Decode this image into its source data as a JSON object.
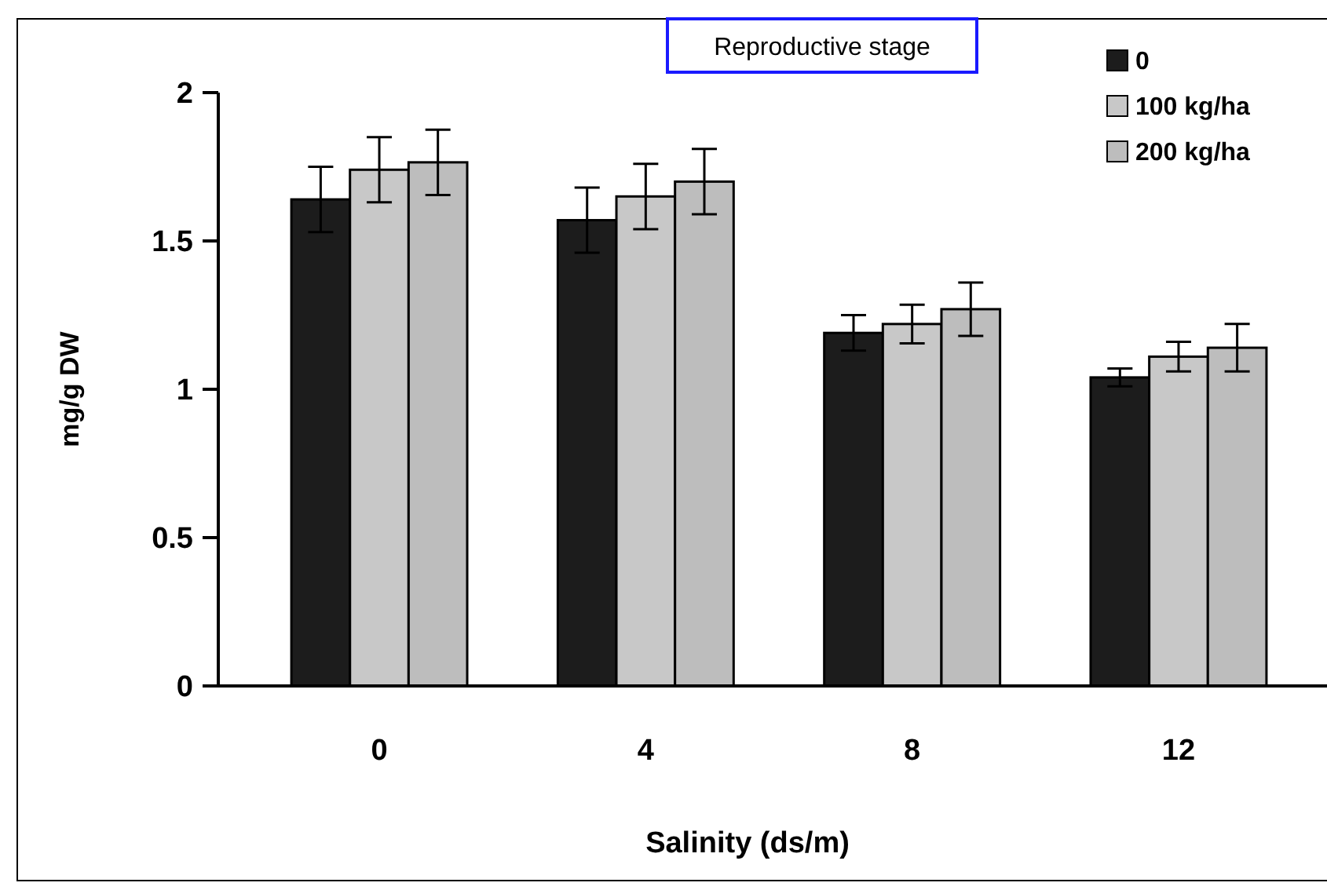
{
  "chart_data": {
    "type": "bar",
    "title": "Reproductive stage",
    "xlabel": "Salinity (ds/m)",
    "ylabel": "mg/g DW",
    "categories": [
      "0",
      "4",
      "8",
      "12"
    ],
    "series": [
      {
        "name": "0",
        "color": "#1c1c1c",
        "values": [
          1.64,
          1.57,
          1.19,
          1.04
        ],
        "errors": [
          0.11,
          0.11,
          0.06,
          0.03
        ]
      },
      {
        "name": "100 kg/ha",
        "color": "#c8c8c8",
        "values": [
          1.74,
          1.65,
          1.22,
          1.11
        ],
        "errors": [
          0.11,
          0.11,
          0.065,
          0.05
        ]
      },
      {
        "name": "200 kg/ha",
        "color": "#bdbdbd",
        "values": [
          1.765,
          1.7,
          1.27,
          1.14
        ],
        "errors": [
          0.11,
          0.11,
          0.09,
          0.08
        ]
      }
    ],
    "ylim": [
      0,
      2
    ],
    "yticks": [
      0,
      0.5,
      1,
      1.5,
      2
    ],
    "grid": false,
    "legend": "top right"
  }
}
